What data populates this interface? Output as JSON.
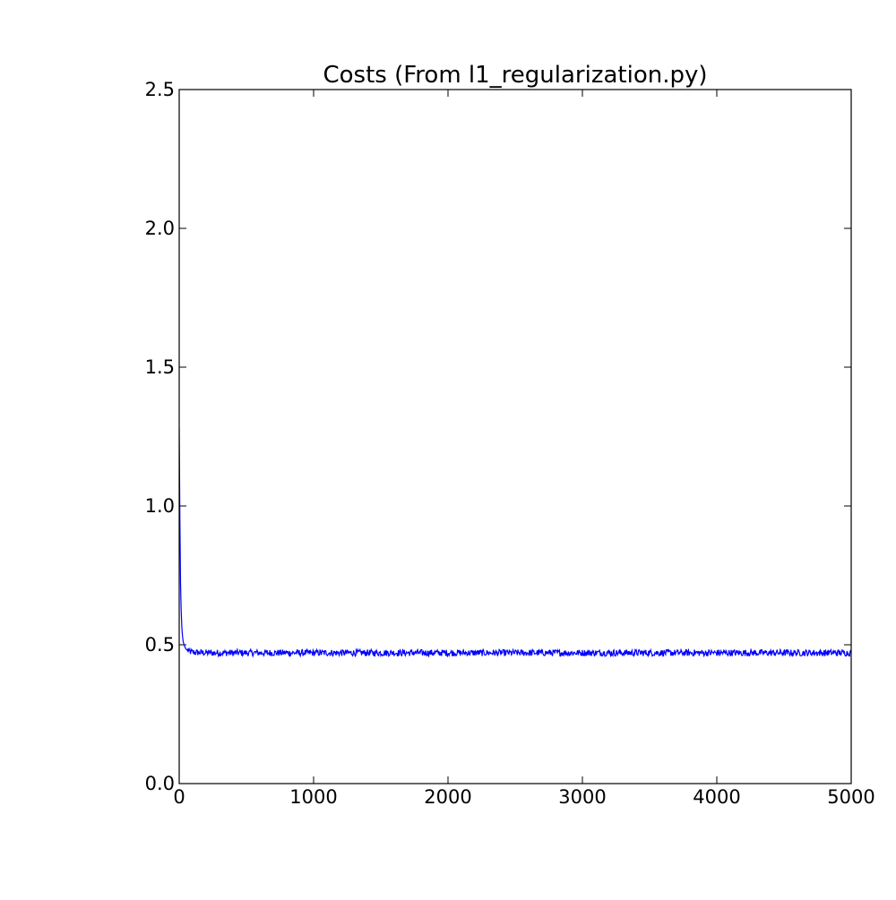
{
  "chart_data": {
    "type": "line",
    "title": "Costs (From l1_regularization.py)",
    "xlabel": "",
    "ylabel": "",
    "xlim": [
      0,
      5000
    ],
    "ylim": [
      0,
      2.5
    ],
    "x_ticks": [
      "0",
      "1000",
      "2000",
      "3000",
      "4000",
      "5000"
    ],
    "y_ticks": [
      "0.0",
      "0.5",
      "1.0",
      "1.5",
      "2.0",
      "2.5"
    ],
    "grid": false,
    "legend": "none",
    "series": [
      {
        "color": "#0000ff",
        "x": [
          0,
          5,
          10,
          15,
          20,
          25,
          30,
          40,
          50,
          60,
          70,
          80,
          100,
          150,
          200,
          300,
          500,
          750,
          1000,
          1250,
          1480,
          1500,
          1750,
          2000,
          2250,
          2500,
          2750,
          3000,
          3250,
          3500,
          3750,
          4000,
          4250,
          4500,
          4750,
          5000
        ],
        "y": [
          1.28,
          0.95,
          0.72,
          0.62,
          0.56,
          0.53,
          0.51,
          0.495,
          0.485,
          0.48,
          0.477,
          0.475,
          0.473,
          0.472,
          0.471,
          0.471,
          0.471,
          0.471,
          0.471,
          0.471,
          0.471,
          0.471,
          0.471,
          0.471,
          0.471,
          0.471,
          0.471,
          0.471,
          0.471,
          0.471,
          0.471,
          0.471,
          0.471,
          0.471,
          0.471,
          0.471
        ],
        "noise_amplitude": 0.012
      }
    ]
  }
}
